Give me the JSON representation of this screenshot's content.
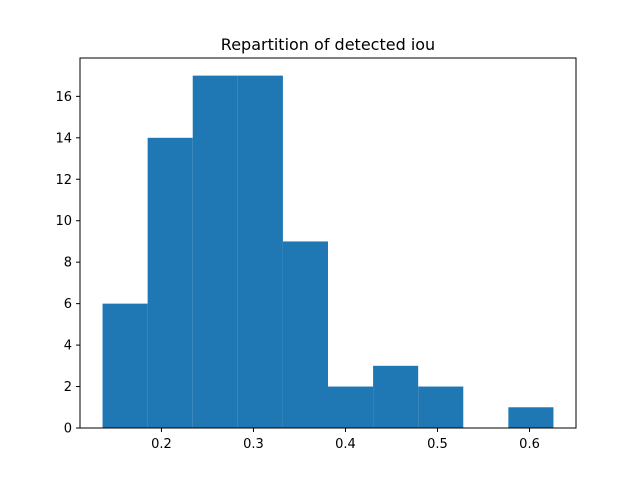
{
  "chart_data": {
    "type": "bar",
    "title": "Repartition of detected iou",
    "xlabel": "",
    "ylabel": "",
    "bins": [
      {
        "start": 0.136,
        "end": 0.185,
        "count": 6
      },
      {
        "start": 0.185,
        "end": 0.234,
        "count": 14
      },
      {
        "start": 0.234,
        "end": 0.283,
        "count": 17
      },
      {
        "start": 0.283,
        "end": 0.332,
        "count": 17
      },
      {
        "start": 0.332,
        "end": 0.381,
        "count": 9
      },
      {
        "start": 0.381,
        "end": 0.43,
        "count": 2
      },
      {
        "start": 0.43,
        "end": 0.479,
        "count": 3
      },
      {
        "start": 0.479,
        "end": 0.528,
        "count": 2
      },
      {
        "start": 0.528,
        "end": 0.577,
        "count": 0
      },
      {
        "start": 0.577,
        "end": 0.626,
        "count": 1
      }
    ],
    "xlim": [
      0.1115,
      0.6505
    ],
    "ylim": [
      0,
      17.85
    ],
    "xticks": [
      0.2,
      0.3,
      0.4,
      0.5,
      0.6
    ],
    "xtick_labels": [
      "0.2",
      "0.3",
      "0.4",
      "0.5",
      "0.6"
    ],
    "yticks": [
      0,
      2,
      4,
      6,
      8,
      10,
      12,
      14,
      16
    ],
    "ytick_labels": [
      "0",
      "2",
      "4",
      "6",
      "8",
      "10",
      "12",
      "14",
      "16"
    ],
    "grid": false,
    "bar_color": "#1f77b4"
  }
}
